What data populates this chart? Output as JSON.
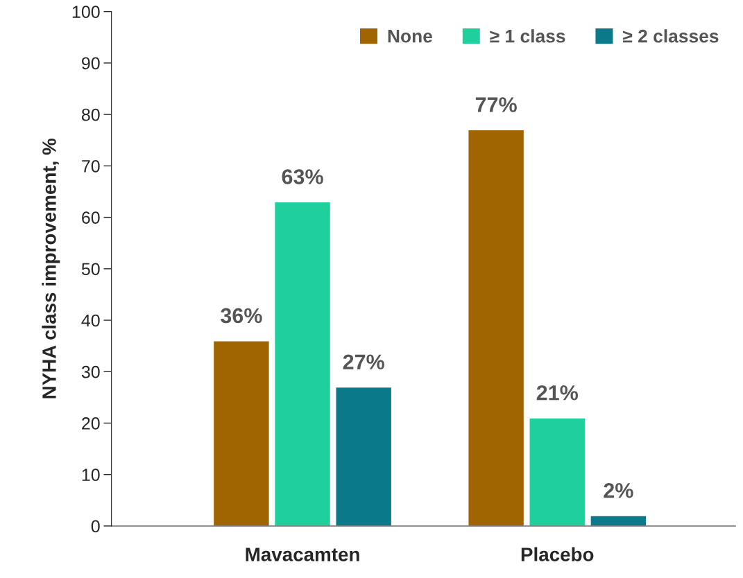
{
  "chart_data": {
    "type": "bar",
    "ylabel": "NYHA class improvement, %",
    "categories": [
      "Mavacamten",
      "Placebo"
    ],
    "series": [
      {
        "name": "None",
        "color": "#a06400",
        "values": [
          36,
          77
        ],
        "value_labels": [
          "36%",
          "77%"
        ]
      },
      {
        "name": "≥ 1 class",
        "color": "#20d09c",
        "values": [
          63,
          21
        ],
        "value_labels": [
          "63%",
          "21%"
        ]
      },
      {
        "name": "≥ 2 classes",
        "color": "#0a7a8a",
        "values": [
          27,
          2
        ],
        "value_labels": [
          "27%",
          "2%"
        ]
      }
    ],
    "ylim": [
      0,
      100
    ],
    "yticks": [
      0,
      10,
      20,
      30,
      40,
      50,
      60,
      70,
      80,
      90,
      100
    ],
    "grid": false,
    "legend": "top right"
  }
}
